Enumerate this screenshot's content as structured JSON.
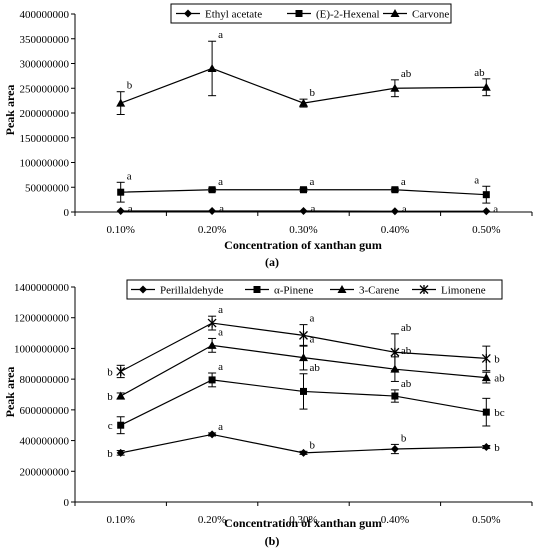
{
  "chart_data": [
    {
      "type": "line",
      "panel_label": "(a)",
      "categories": [
        "0.10%",
        "0.20%",
        "0.30%",
        "0.40%",
        "0.50%"
      ],
      "xlabel": "Concentration of xanthan gum",
      "ylabel": "Peak area",
      "ylim": [
        0,
        400000000
      ],
      "yticks": [
        "0",
        "50000000",
        "100000000",
        "150000000",
        "200000000",
        "250000000",
        "300000000",
        "350000000",
        "400000000"
      ],
      "grid": false,
      "legend_position": "top",
      "series": [
        {
          "name": "Ethyl acetate",
          "marker": "diamond",
          "values": [
            2000000,
            2000000,
            2000000,
            1500000,
            1500000
          ],
          "errors": [
            0,
            0,
            0,
            0,
            0
          ],
          "sig": [
            "a",
            "a",
            "a",
            "a",
            "a"
          ]
        },
        {
          "name": "(E)-2-Hexenal",
          "marker": "square",
          "values": [
            40000000,
            45000000,
            45000000,
            45000000,
            35000000
          ],
          "errors": [
            20000000,
            3000000,
            3000000,
            3000000,
            17000000
          ],
          "sig": [
            "a",
            "a",
            "a",
            "a",
            "a"
          ]
        },
        {
          "name": "Carvone",
          "marker": "triangle",
          "values": [
            220000000,
            290000000,
            220000000,
            250000000,
            252000000
          ],
          "errors": [
            23000000,
            55000000,
            8000000,
            17000000,
            17000000
          ],
          "sig": [
            "b",
            "a",
            "b",
            "ab",
            "ab"
          ]
        }
      ]
    },
    {
      "type": "line",
      "panel_label": "(b)",
      "categories": [
        "0.10%",
        "0.20%",
        "0.30%",
        "0.40%",
        "0.50%"
      ],
      "xlabel": "Concentration of xanthan gum",
      "ylabel": "Peak area",
      "ylim": [
        0,
        1400000000
      ],
      "yticks": [
        "0",
        "200000000",
        "400000000",
        "600000000",
        "800000000",
        "1000000000",
        "1200000000",
        "1400000000"
      ],
      "grid": false,
      "legend_position": "top",
      "series": [
        {
          "name": "Perillaldehyde",
          "marker": "diamond",
          "values": [
            320000000,
            440000000,
            320000000,
            345000000,
            358000000
          ],
          "errors": [
            15000000,
            10000000,
            10000000,
            30000000,
            10000000
          ],
          "sig": [
            "b",
            "a",
            "b",
            "b",
            "b"
          ]
        },
        {
          "name": "α-Pinene",
          "marker": "square",
          "values": [
            500000000,
            795000000,
            720000000,
            690000000,
            585000000
          ],
          "errors": [
            55000000,
            45000000,
            115000000,
            40000000,
            90000000
          ],
          "sig": [
            "c",
            "a",
            "ab",
            "ab",
            "bc"
          ]
        },
        {
          "name": "3-Carene",
          "marker": "triangle",
          "values": [
            690000000,
            1020000000,
            940000000,
            865000000,
            810000000
          ],
          "errors": [
            20000000,
            45000000,
            80000000,
            80000000,
            35000000
          ],
          "sig": [
            "b",
            "a",
            "a",
            "ab",
            "ab"
          ]
        },
        {
          "name": "Limonene",
          "marker": "star",
          "values": [
            850000000,
            1165000000,
            1085000000,
            975000000,
            935000000
          ],
          "errors": [
            40000000,
            45000000,
            70000000,
            120000000,
            80000000
          ],
          "sig": [
            "b",
            "a",
            "a",
            "ab",
            "b"
          ]
        }
      ]
    }
  ]
}
